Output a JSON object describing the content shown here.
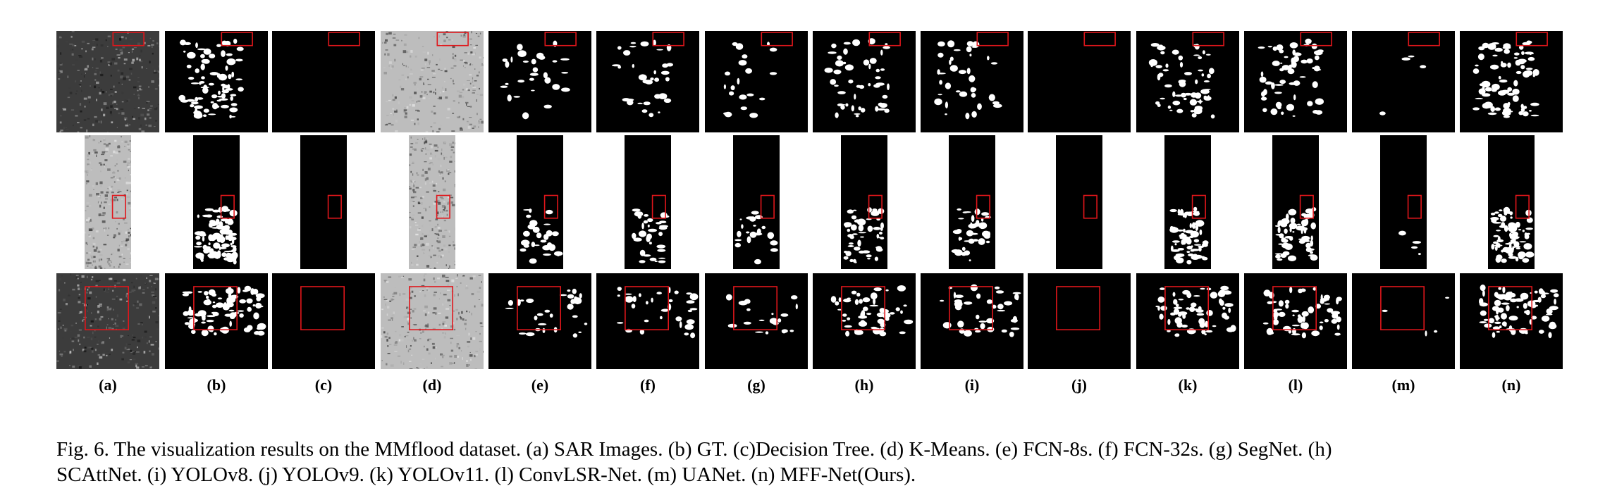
{
  "figure": {
    "column_labels": [
      "(a)",
      "(b)",
      "(c)",
      "(d)",
      "(e)",
      "(f)",
      "(g)",
      "(h)",
      "(i)",
      "(j)",
      "(k)",
      "(l)",
      "(m)",
      "(n)"
    ],
    "row_count": 3,
    "highlight_color": "#e0161b",
    "caption_lines": [
      "Fig. 6.  The visualization results on the MMflood dataset. (a) SAR Images. (b) GT. (c)Decision Tree. (d) K-Means. (e) FCN-8s. (f) FCN-32s. (g) SegNet. (h)",
      "SCAttNet. (i) YOLOv8. (j) YOLOv9. (k) YOLOv11. (l) ConvLSR-Net. (m) UANet. (n) MFF-Net(Ours)."
    ]
  }
}
